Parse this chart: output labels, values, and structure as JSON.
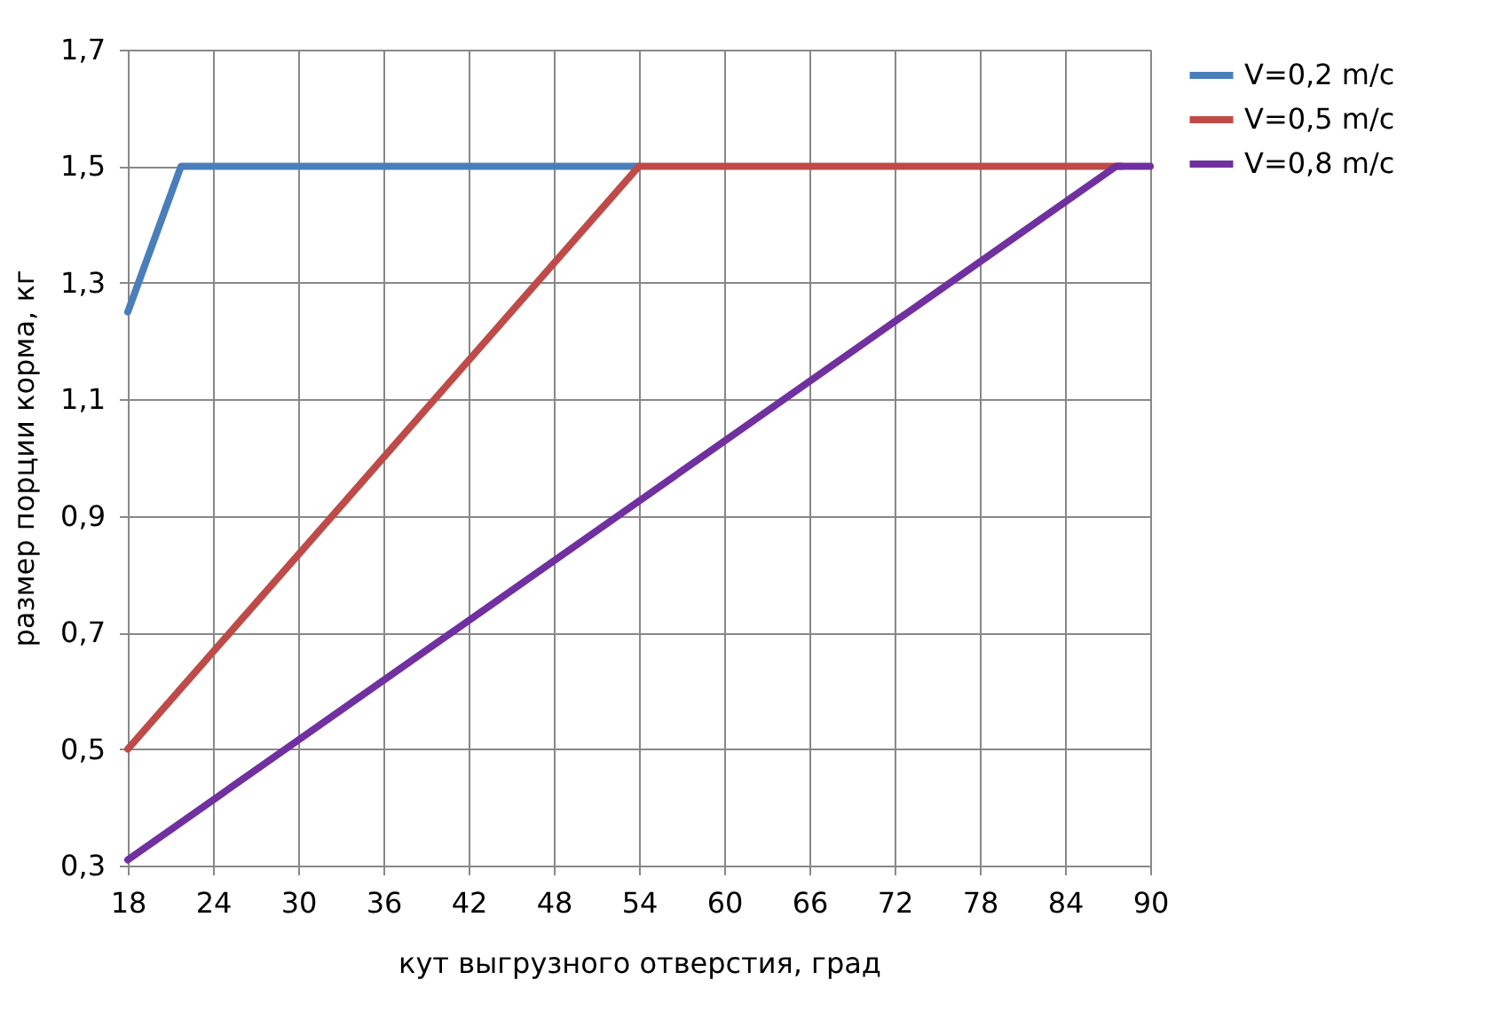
{
  "chart_data": {
    "type": "line",
    "xlabel": "кут выгрузного отверстия, град",
    "ylabel": "размер порции корма, кг",
    "xlim": [
      18,
      90
    ],
    "xticks": [
      18,
      24,
      30,
      36,
      42,
      48,
      54,
      60,
      66,
      72,
      78,
      84,
      90
    ],
    "ylim": [
      0.3,
      1.7
    ],
    "yticks": [
      {
        "value": 0.3,
        "label": "0,3"
      },
      {
        "value": 0.5,
        "label": "0,5"
      },
      {
        "value": 0.7,
        "label": "0,7"
      },
      {
        "value": 0.9,
        "label": "0,9"
      },
      {
        "value": 1.1,
        "label": "1,1"
      },
      {
        "value": 1.3,
        "label": "1,3"
      },
      {
        "value": 1.5,
        "label": "1,5"
      },
      {
        "value": 1.7,
        "label": "1,7"
      }
    ],
    "grid": true,
    "legend": "right",
    "line_style": "solid",
    "marker": "none",
    "series": [
      {
        "name": "V=0,2 m/c",
        "color": "#4a7ebb",
        "x": [
          18,
          21.75,
          54
        ],
        "values": [
          1.25,
          1.5,
          1.5
        ]
      },
      {
        "name": "V=0,5 m/c",
        "color": "#be4b48",
        "x": [
          18,
          54,
          88
        ],
        "values": [
          0.5,
          1.5,
          1.5
        ]
      },
      {
        "name": "V=0,8 m/c",
        "color": "#7030a0",
        "x": [
          18,
          87.6,
          90
        ],
        "values": [
          0.31,
          1.5,
          1.5
        ]
      }
    ]
  }
}
